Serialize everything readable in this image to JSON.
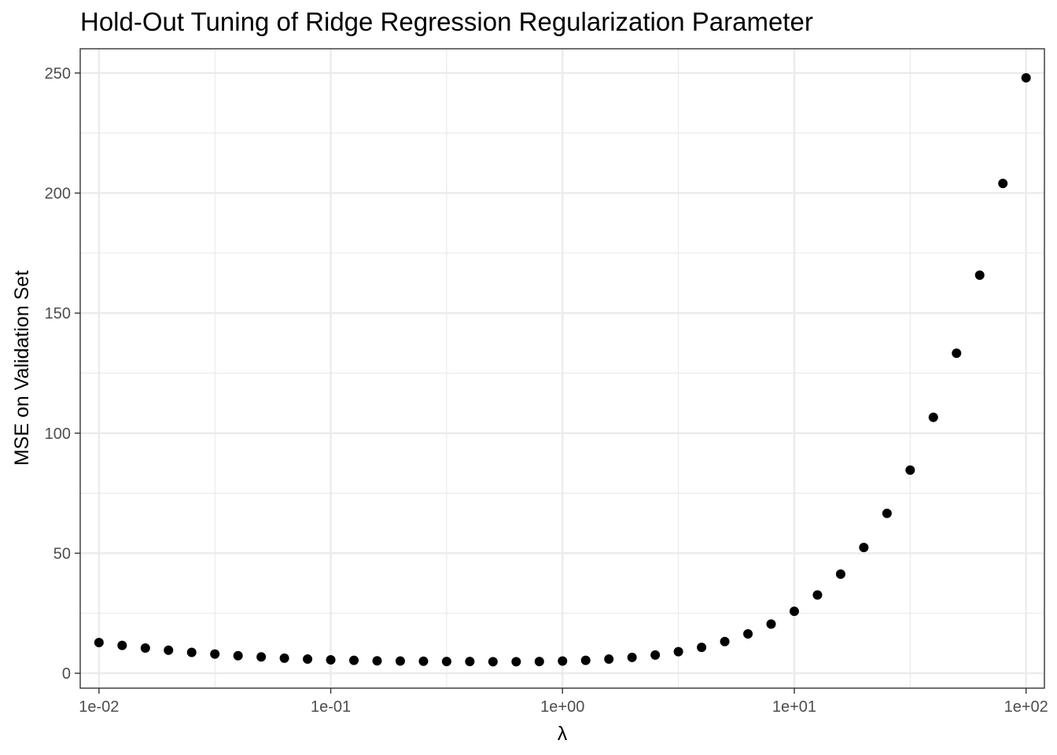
{
  "chart_data": {
    "type": "scatter",
    "title": "Hold-Out Tuning of Ridge Regression Regularization Parameter",
    "xlabel": "λ",
    "ylabel": "MSE on Validation Set",
    "x_scale": "log10",
    "xlim": [
      0.0083,
      120
    ],
    "ylim": [
      -6.2,
      260.1
    ],
    "x_ticks": [
      0.01,
      0.1,
      1,
      10,
      100
    ],
    "x_tick_labels": [
      "1e-02",
      "1e-01",
      "1e+00",
      "1e+01",
      "1e+02"
    ],
    "y_ticks": [
      0,
      50,
      100,
      150,
      200,
      250
    ],
    "y_tick_labels": [
      "0",
      "50",
      "100",
      "150",
      "200",
      "250"
    ],
    "grid": true,
    "legend": "none",
    "point_color": "#000000",
    "x": [
      0.01,
      0.01259,
      0.01585,
      0.01995,
      0.02512,
      0.03162,
      0.03981,
      0.05012,
      0.0631,
      0.07943,
      0.1,
      0.1259,
      0.1585,
      0.1995,
      0.2512,
      0.3162,
      0.3981,
      0.5012,
      0.631,
      0.7943,
      1,
      1.259,
      1.585,
      1.995,
      2.512,
      3.162,
      3.981,
      5.012,
      6.31,
      7.943,
      10,
      12.59,
      15.85,
      19.95,
      25.12,
      31.62,
      39.81,
      50.12,
      63.1,
      79.43,
      100
    ],
    "y": [
      12.8,
      11.6,
      10.5,
      9.6,
      8.7,
      8.0,
      7.3,
      6.8,
      6.3,
      5.9,
      5.6,
      5.4,
      5.2,
      5.1,
      5.0,
      4.9,
      4.9,
      4.8,
      4.8,
      4.9,
      5.1,
      5.4,
      5.9,
      6.6,
      7.6,
      9.0,
      10.8,
      13.2,
      16.4,
      20.5,
      25.8,
      32.6,
      41.3,
      52.4,
      66.6,
      84.6,
      106.6,
      133.3,
      165.8,
      204.0,
      248.0
    ]
  }
}
